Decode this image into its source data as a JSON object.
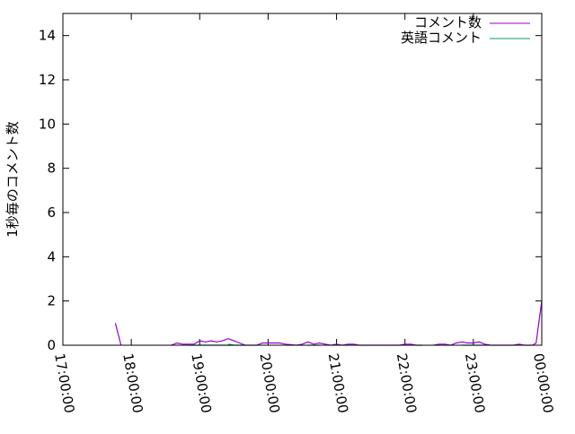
{
  "chart_data": {
    "type": "line",
    "title": "",
    "xlabel": "",
    "ylabel": "1秒毎のコメント数",
    "xlim": [
      "17:00:00",
      "00:00:00"
    ],
    "ylim": [
      0,
      15
    ],
    "x_ticks": [
      "17:00:00",
      "18:00:00",
      "19:00:00",
      "20:00:00",
      "21:00:00",
      "22:00:00",
      "23:00:00",
      "00:00:00"
    ],
    "y_ticks": [
      0,
      2,
      4,
      6,
      8,
      10,
      12,
      14
    ],
    "y_tick_labels": [
      "0",
      "2",
      "4",
      "6",
      "8",
      "10",
      "12",
      "14"
    ],
    "grid": false,
    "legend_position": "top-right",
    "series": [
      {
        "name": "コメント数",
        "color": "#9400d3",
        "points": [
          [
            "17:46:00",
            1
          ],
          [
            "17:51:00",
            0
          ],
          null,
          [
            "18:35:00",
            0
          ],
          [
            "18:40:00",
            0.1
          ],
          [
            "18:45:00",
            0.05
          ],
          [
            "18:50:00",
            0.05
          ],
          [
            "18:55:00",
            0.05
          ],
          [
            "19:00:00",
            0.2
          ],
          [
            "19:05:00",
            0.15
          ],
          [
            "19:10:00",
            0.2
          ],
          [
            "19:15:00",
            0.15
          ],
          [
            "19:20:00",
            0.2
          ],
          [
            "19:25:00",
            0.3
          ],
          [
            "19:30:00",
            0.2
          ],
          [
            "19:35:00",
            0.1
          ],
          [
            "19:40:00",
            0
          ],
          [
            "19:50:00",
            0
          ],
          [
            "19:55:00",
            0.1
          ],
          [
            "20:10:00",
            0.1
          ],
          [
            "20:15:00",
            0.05
          ],
          [
            "20:25:00",
            0
          ],
          [
            "20:30:00",
            0.05
          ],
          [
            "20:35:00",
            0.15
          ],
          [
            "20:40:00",
            0.05
          ],
          [
            "20:45:00",
            0.1
          ],
          [
            "20:50:00",
            0.05
          ],
          [
            "20:55:00",
            0
          ],
          [
            "21:00:00",
            0.05
          ],
          [
            "21:05:00",
            0
          ],
          [
            "21:10:00",
            0.05
          ],
          [
            "21:15:00",
            0.05
          ],
          [
            "21:20:00",
            0
          ],
          [
            "21:55:00",
            0
          ],
          [
            "22:00:00",
            0.05
          ],
          [
            "22:05:00",
            0.05
          ],
          [
            "22:10:00",
            0
          ],
          [
            "22:15:00",
            0
          ],
          null,
          [
            "22:25:00",
            0
          ],
          [
            "22:30:00",
            0.05
          ],
          [
            "22:35:00",
            0.05
          ],
          [
            "22:40:00",
            0
          ],
          [
            "22:45:00",
            0.1
          ],
          [
            "22:50:00",
            0.15
          ],
          [
            "22:55:00",
            0.1
          ],
          [
            "23:00:00",
            0.1
          ],
          [
            "23:05:00",
            0.15
          ],
          [
            "23:10:00",
            0.05
          ],
          [
            "23:15:00",
            0
          ],
          [
            "23:35:00",
            0
          ],
          [
            "23:40:00",
            0.05
          ],
          [
            "23:45:00",
            0
          ],
          [
            "23:52:00",
            0
          ],
          [
            "23:55:00",
            0.1
          ],
          [
            "00:00:00",
            2
          ]
        ]
      },
      {
        "name": "英語コメント",
        "color": "#009e73",
        "points": [
          [
            "18:50:00",
            0
          ],
          [
            "19:30:00",
            0
          ],
          [
            "19:25:00",
            0.05
          ],
          [
            "19:30:00",
            0
          ],
          [
            "19:40:00",
            0
          ],
          null,
          [
            "20:35:00",
            0
          ],
          [
            "20:45:00",
            0
          ],
          null,
          [
            "22:50:00",
            0
          ],
          [
            "23:10:00",
            0
          ]
        ]
      }
    ]
  }
}
